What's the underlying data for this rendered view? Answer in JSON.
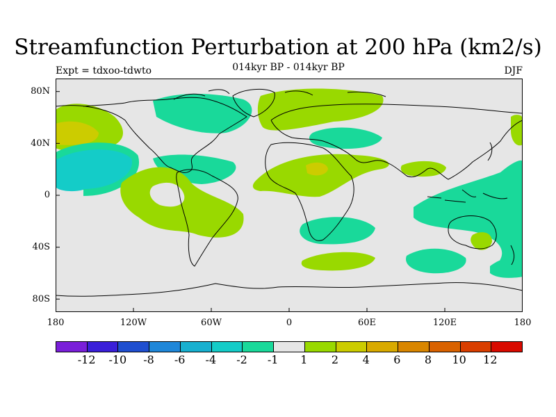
{
  "title": "Streamfunction Perturbation at 200 hPa (km2/s)",
  "subtitle_left": "Expt = tdxoo-tdwto",
  "subtitle_center": "014kyr BP - 014kyr BP",
  "subtitle_right": "DJF",
  "lat_labels": [
    "80N",
    "40N",
    "0",
    "40S",
    "80S"
  ],
  "lon_labels": [
    "180",
    "120W",
    "60W",
    "0",
    "60E",
    "120E",
    "180"
  ],
  "colorbar": {
    "colors": [
      "#7a1fd9",
      "#3a1fd9",
      "#1f4fd0",
      "#1f87d9",
      "#17b0d0",
      "#14ccc8",
      "#19d99a",
      "#e6e6e6",
      "#99d900",
      "#cccc00",
      "#d9aa00",
      "#d98600",
      "#d96200",
      "#d93e00",
      "#d90a00"
    ],
    "labels": [
      "-12",
      "-10",
      "-8",
      "-6",
      "-4",
      "-2",
      "-1",
      "1",
      "2",
      "4",
      "6",
      "8",
      "10",
      "12"
    ]
  },
  "colors": {
    "background": "#e6e6e6",
    "neg_small": "#19d99a",
    "neg_medium": "#14ccc8",
    "pos_small": "#99d900",
    "pos_medium": "#cccc00",
    "coastline": "#000000"
  }
}
